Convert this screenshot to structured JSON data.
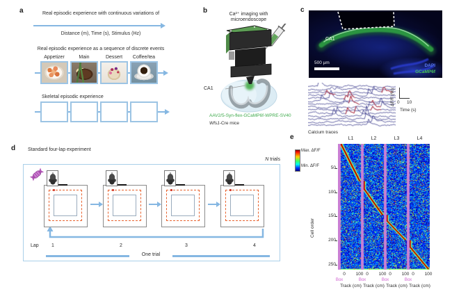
{
  "panel_a": {
    "label": "a",
    "continuous_title": "Real episodic experience with continuous variations of",
    "continuous_vars": "Distance (m), Time (s), Stimulus (Hz)",
    "discrete_title": "Real episodic experience as a sequence of discrete events",
    "events": [
      "Appetizer",
      "Main",
      "Dessert",
      "Coffee/tea"
    ],
    "skeletal_title": "Skeletal episodic experience"
  },
  "panel_b": {
    "label": "b",
    "title_line1": "Ca²⁺ imaging with",
    "title_line2": "microendoscope",
    "region_label": "CA1",
    "virus": "AAV2/5-Syn-flex-GCaMP6f-WPRE-SV40",
    "mouse_gene": "Wfs1",
    "mouse_suffix": "-Cre mice"
  },
  "panel_c": {
    "label": "c",
    "region_label": "CA1",
    "scale_bar_label": "500 µm",
    "stain_dapi": "DAPI",
    "stain_gcamp": "GCaMP6f",
    "dff_label": "ΔF/F (%)",
    "time_tick_0": "0",
    "time_tick_10": "10",
    "time_label": "Time (s)",
    "traces_caption": "Calcium traces"
  },
  "panel_d": {
    "label": "d",
    "title": "Standard four-lap experiment",
    "n_label": "N",
    "trials_suffix": " trials",
    "lap_label": "Lap",
    "laps": [
      "1",
      "2",
      "3",
      "4"
    ],
    "one_trial": "One trial"
  },
  "panel_e": {
    "label": "e"
  },
  "chart_data": {
    "type": "heatmap",
    "lap_labels": [
      "L1",
      "L2",
      "L3",
      "L4"
    ],
    "colorbar_max": "Max. ΔF/F",
    "colorbar_min": "Min. ΔF/F",
    "ylabel": "Cell order",
    "yticks": [
      50,
      100,
      150,
      200,
      250
    ],
    "n_cells": 260,
    "x_ticks": [
      "0",
      "100"
    ],
    "x_range_cm": [
      0,
      100
    ],
    "xlabel": "Track (cm)",
    "box_label": "Box",
    "n_laps": 4,
    "cell_ranges_per_lap": [
      [
        1,
        78
      ],
      [
        78,
        148
      ],
      [
        148,
        200
      ],
      [
        200,
        260
      ]
    ],
    "pattern": "Place cells sorted by firing position form one sequential diagonal band spanning laps L1-L4; magenta stripes mark box periods between laps; background is low dF/F (blue) with sparse speckles",
    "colormap": "jet",
    "box_stripe_color": "#c97fd4"
  },
  "colors": {
    "accent_blue": "#85b7e2",
    "box_border_blue": "#a9cfe9",
    "path_orange": "#e8622d",
    "virus_green": "#3faa4c",
    "dapi_blue": "#5a7cff",
    "gcamp_green": "#49c75a"
  }
}
